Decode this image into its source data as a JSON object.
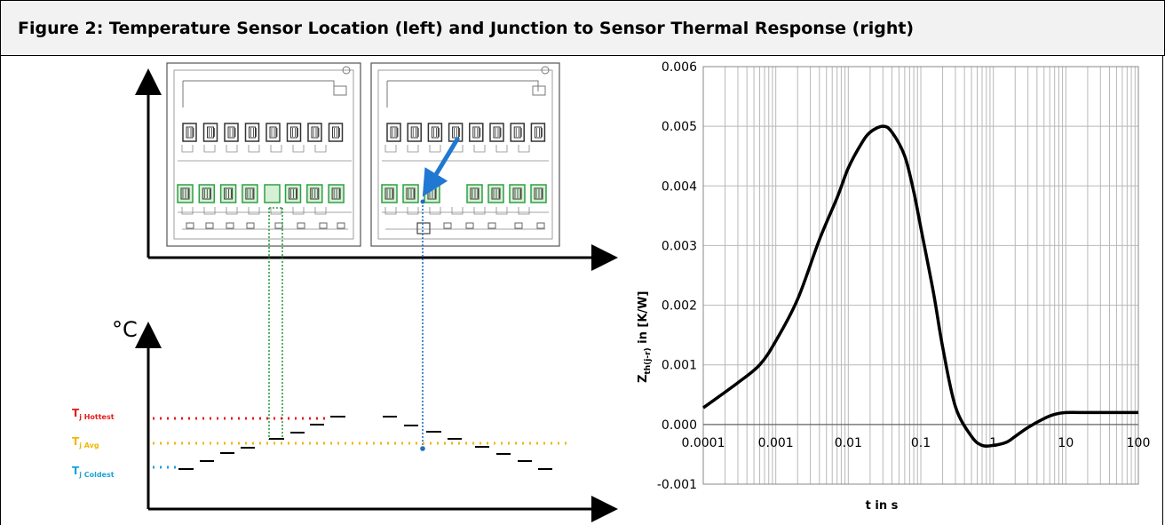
{
  "header": {
    "title": "Figure 2: Temperature Sensor Location (left) and Junction to Sensor Thermal Response (right)"
  },
  "left_diagram": {
    "unit_label": "°C",
    "levels": [
      {
        "main": "T",
        "sub": "j Hottest",
        "color": "#e41c1c"
      },
      {
        "main": "T",
        "sub": "j Avg",
        "color": "#f2b705"
      },
      {
        "main": "T",
        "sub": "j Coldest",
        "color": "#1ca3d6"
      }
    ],
    "chip_color": "#2ea043",
    "sensor_line_color": "#1f6fc4",
    "arrow_color": "#1f78d1"
  },
  "chart_data": {
    "type": "line",
    "xscale": "log",
    "x_ticks": [
      "0.0001",
      "0.001",
      "0.01",
      "0.1",
      "1",
      "10",
      "100"
    ],
    "y_ticks": [
      "-0.001",
      "0.000",
      "0.001",
      "0.002",
      "0.003",
      "0.004",
      "0.005",
      "0.006"
    ],
    "xlim": [
      0.0001,
      100
    ],
    "ylim": [
      -0.001,
      0.006
    ],
    "xlabel": "t in s",
    "ylabel_main": "Z",
    "ylabel_sub": "th(j-r)",
    "ylabel_rest": " in [K/W]",
    "grid": true,
    "series": [
      {
        "x": [
          0.0001,
          0.0003,
          0.0006,
          0.001,
          0.002,
          0.004,
          0.007,
          0.01,
          0.015,
          0.02,
          0.03,
          0.04,
          0.06,
          0.08,
          0.1,
          0.15,
          0.2,
          0.3,
          0.5,
          0.7,
          1,
          1.5,
          2,
          3,
          5,
          7,
          10,
          20,
          50,
          100
        ],
        "y": [
          0.00028,
          0.0007,
          0.001,
          0.0014,
          0.0021,
          0.0031,
          0.0038,
          0.0043,
          0.0047,
          0.0049,
          0.005,
          0.0049,
          0.0045,
          0.0039,
          0.0033,
          0.0022,
          0.0013,
          0.0003,
          -0.0002,
          -0.00035,
          -0.00035,
          -0.0003,
          -0.0002,
          -5e-05,
          0.0001,
          0.00017,
          0.0002,
          0.0002,
          0.0002,
          0.0002
        ]
      }
    ]
  }
}
